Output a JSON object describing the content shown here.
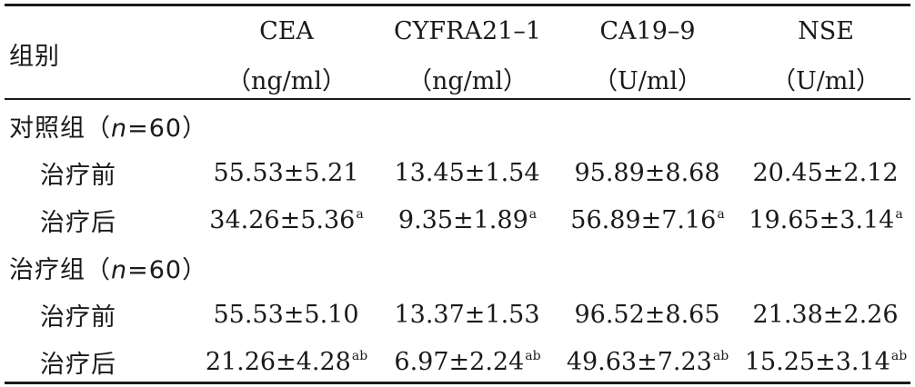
{
  "header": {
    "group_label": "组别",
    "columns": [
      {
        "name": "CEA",
        "unit": "（ng/ml）"
      },
      {
        "name": "CYFRA21–1",
        "unit": "（ng/ml）"
      },
      {
        "name": "CA19–9",
        "unit": "（U/ml）"
      },
      {
        "name": "NSE",
        "unit": "（U/ml）"
      }
    ]
  },
  "groups": [
    {
      "label_prefix": "对照组（",
      "n_var": "n",
      "label_suffix": "=60）",
      "rows": [
        {
          "label": "治疗前",
          "values": [
            "55.53±5.21",
            "13.45±1.54",
            "95.89±8.68",
            "20.45±2.12"
          ],
          "marks": [
            "",
            "",
            "",
            ""
          ]
        },
        {
          "label": "治疗后",
          "values": [
            "34.26±5.36",
            "9.35±1.89",
            "56.89±7.16",
            "19.65±3.14"
          ],
          "marks": [
            "a",
            "a",
            "a",
            "a"
          ]
        }
      ]
    },
    {
      "label_prefix": "治疗组（",
      "n_var": "n",
      "label_suffix": "=60）",
      "rows": [
        {
          "label": "治疗前",
          "values": [
            "55.53±5.10",
            "13.37±1.53",
            "96.52±8.65",
            "21.38±2.26"
          ],
          "marks": [
            "",
            "",
            "",
            ""
          ]
        },
        {
          "label": "治疗后",
          "values": [
            "21.26±4.28",
            "6.97±2.24",
            "49.63±7.23",
            "15.25±3.14"
          ],
          "marks": [
            "ab",
            "ab",
            "ab",
            "ab"
          ]
        }
      ]
    }
  ]
}
